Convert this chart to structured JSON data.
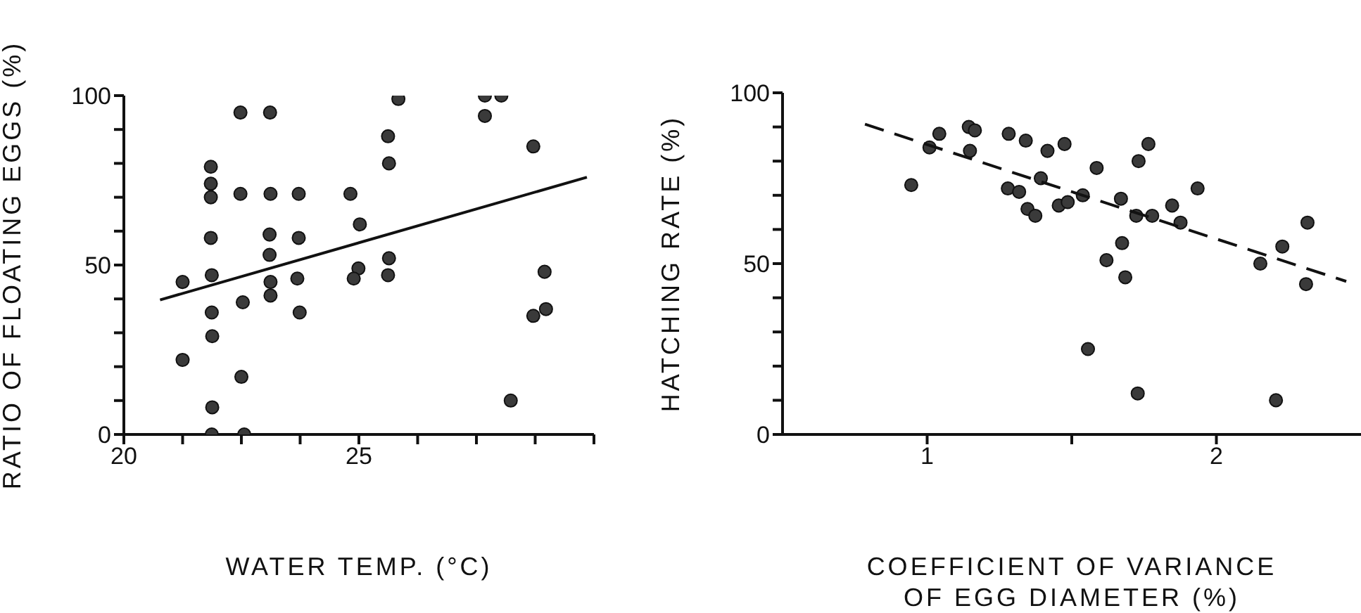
{
  "chart_data": [
    {
      "type": "scatter",
      "xlabel": "WATER TEMP. (°C)",
      "ylabel": "RATIO OF FLOATING EGGS (%)",
      "marker": "circle",
      "grid": false,
      "xlim": [
        20,
        30
      ],
      "xticks": [
        20,
        {
          "value": 21.25,
          "label": null
        },
        {
          "value": 22.5,
          "label": null
        },
        {
          "value": 23.75,
          "label": null
        },
        25,
        {
          "value": 26.25,
          "label": null
        },
        {
          "value": 27.5,
          "label": null
        },
        {
          "value": 28.75,
          "label": null
        },
        {
          "value": 30,
          "label": null
        }
      ],
      "ylim": [
        0,
        100
      ],
      "yticks": [
        0,
        {
          "value": 10,
          "label": null
        },
        {
          "value": 20,
          "label": null
        },
        {
          "value": 30,
          "label": null
        },
        {
          "value": 40,
          "label": null
        },
        50,
        {
          "value": 60,
          "label": null
        },
        {
          "value": 70,
          "label": null
        },
        {
          "value": 80,
          "label": null
        },
        {
          "value": 90,
          "label": null
        },
        100
      ],
      "series": [
        {
          "color": "#3a3a3a",
          "x": [
            21.25,
            21.25,
            21.85,
            21.85,
            21.85,
            21.85,
            21.87,
            21.87,
            21.88,
            21.88,
            21.87,
            22.56,
            22.48,
            22.48,
            22.53,
            22.5,
            23.11,
            23.12,
            23.1,
            23.1,
            23.12,
            23.12,
            23.72,
            23.72,
            23.69,
            23.74,
            24.82,
            25.02,
            24.99,
            24.89,
            25.62,
            25.64,
            25.64,
            25.62,
            25.84,
            27.68,
            28.03,
            27.68,
            28.71,
            28.23,
            28.95,
            28.98,
            28.71
          ],
          "values": [
            45,
            22,
            79,
            74,
            70,
            58,
            47,
            36,
            29,
            8,
            0,
            0,
            95,
            71,
            39,
            17,
            95,
            71,
            59,
            53,
            45,
            41,
            71,
            58,
            46,
            36,
            71,
            62,
            49,
            46,
            88,
            80,
            52,
            47,
            99,
            100,
            100,
            94,
            85,
            10,
            48,
            37,
            35
          ]
        },
        {
          "type": "line",
          "marker": "none",
          "color": "#111111",
          "line_style": "solid",
          "x": [
            20.77,
            29.85
          ],
          "values": [
            39.7,
            75.9
          ]
        }
      ]
    },
    {
      "type": "scatter",
      "xlabel": "COEFFICIENT OF VARIANCE\nOF EGG DIAMETER (%)",
      "ylabel": "HATCHING RATE (%)",
      "marker": "circle",
      "grid": false,
      "xlim": [
        0.5,
        2.5
      ],
      "xticks": [
        1,
        {
          "value": 1.5,
          "label": null
        },
        2
      ],
      "ylim": [
        0,
        100
      ],
      "yticks": [
        0,
        {
          "value": 10,
          "label": null
        },
        {
          "value": 20,
          "label": null
        },
        {
          "value": 30,
          "label": null
        },
        {
          "value": 40,
          "label": null
        },
        50,
        {
          "value": 60,
          "label": null
        },
        {
          "value": 70,
          "label": null
        },
        {
          "value": 80,
          "label": null
        },
        {
          "value": 90,
          "label": null
        },
        100
      ],
      "series": [
        {
          "color": "#3a3a3a",
          "x": [
            0.945,
            1.008,
            1.042,
            1.144,
            1.165,
            1.148,
            1.282,
            1.341,
            1.416,
            1.475,
            1.279,
            1.318,
            1.347,
            1.374,
            1.393,
            1.455,
            1.486,
            1.538,
            1.586,
            1.67,
            1.731,
            1.765,
            1.723,
            1.778,
            1.847,
            1.876,
            1.935,
            1.674,
            1.62,
            1.685,
            1.556,
            1.728,
            2.152,
            2.228,
            2.315,
            2.31,
            2.206
          ],
          "values": [
            73,
            84,
            88,
            90,
            89,
            83,
            88,
            86,
            83,
            85,
            72,
            71,
            66,
            64,
            75,
            67,
            68,
            70,
            78,
            69,
            80,
            85,
            64,
            64,
            67,
            62,
            72,
            56,
            51,
            46,
            25,
            12,
            50,
            55,
            62,
            44,
            10
          ]
        },
        {
          "type": "line",
          "marker": "none",
          "color": "#111111",
          "line_style": "dashed",
          "x": [
            0.785,
            2.449
          ],
          "values": [
            90.8,
            44.8
          ]
        }
      ]
    }
  ]
}
